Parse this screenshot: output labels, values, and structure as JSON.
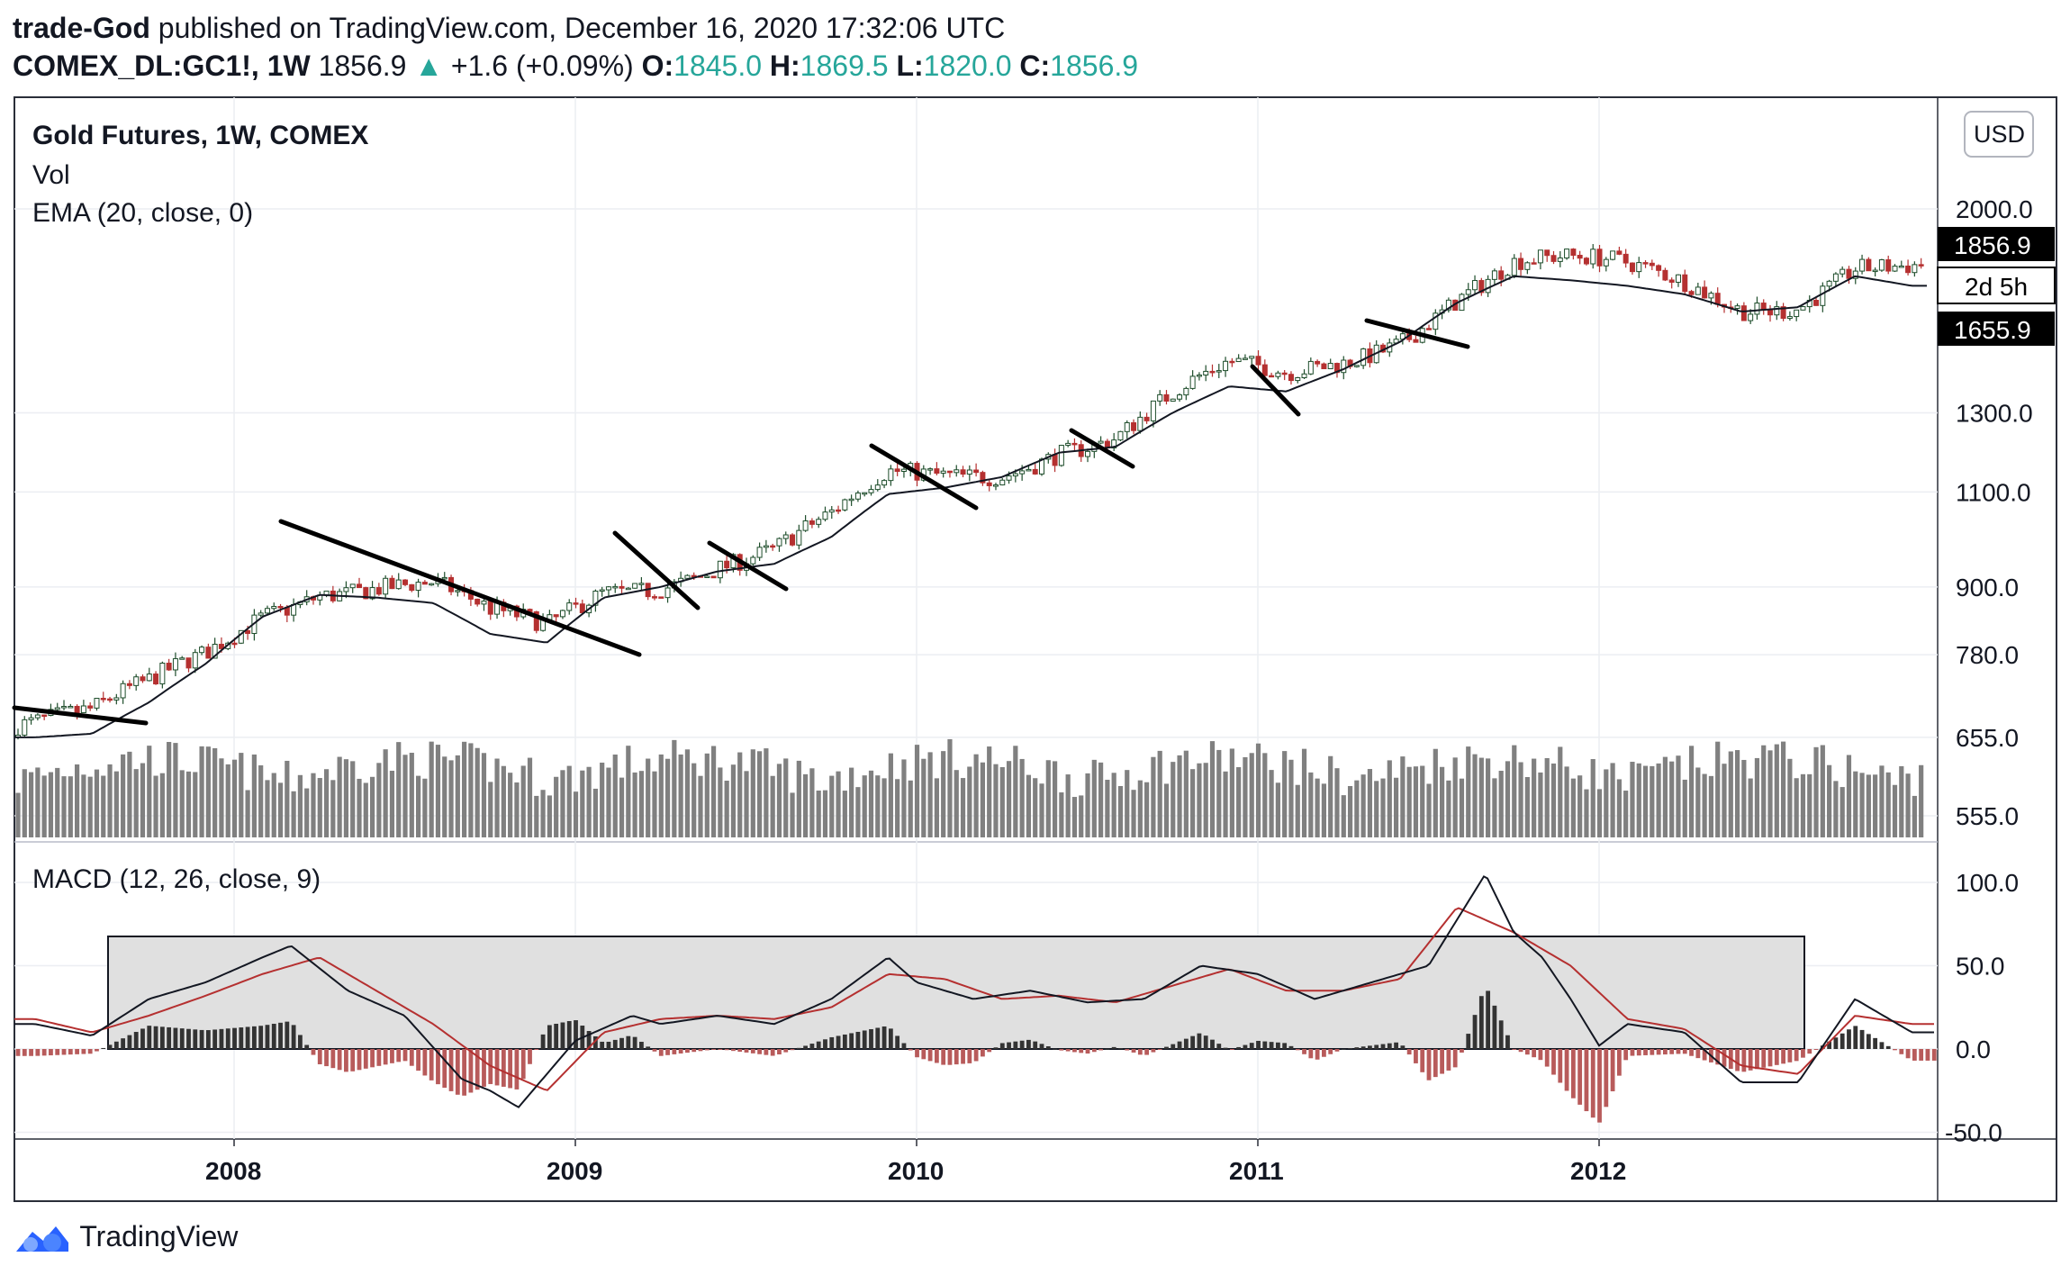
{
  "header": {
    "author": "trade-God",
    "published": "published on TradingView.com, December 16, 2020 17:32:06 UTC",
    "symbol": "COMEX_DL:GC1!, 1W",
    "last": "1856.9",
    "change": "+1.6 (+0.09%)",
    "open_label": "O:",
    "open": "1845.0",
    "high_label": "H:",
    "high": "1869.5",
    "low_label": "L:",
    "low": "1820.0",
    "close_label": "C:",
    "close": "1856.9"
  },
  "legend": {
    "title": "Gold Futures, 1W, COMEX",
    "vol": "Vol",
    "ema": "EMA (20, close, 0)",
    "macd": "MACD (12, 26, close, 9)"
  },
  "currency": "USD",
  "price_tags": {
    "last": "1856.9",
    "countdown": "2d 5h",
    "ema": "1655.9"
  },
  "footer": {
    "brand": "TradingView"
  },
  "colors": {
    "up": "#26a69a",
    "candle_up": "#1e4d2b",
    "candle_down": "#b53030",
    "volume": "#808080",
    "ema": "#131722",
    "signal": "#b53030",
    "hist_up": "#333333",
    "hist_down": "#b85b5b"
  },
  "chart_data": [
    {
      "type": "candlestick",
      "title": "Gold Futures, 1W, COMEX",
      "x_ticks": [
        "2008",
        "2009",
        "2010",
        "2011",
        "2012"
      ],
      "y_ticks": [
        2000.0,
        1300.0,
        1100.0,
        900.0,
        780.0,
        655.0,
        555.0
      ],
      "y_scale": "log",
      "ylim": [
        525,
        2250
      ],
      "series": [
        {
          "name": "EMA (20, close, 0)",
          "points": [
            [
              "2007-06",
              655
            ],
            [
              "2007-08",
              660
            ],
            [
              "2007-10",
              705
            ],
            [
              "2007-12",
              765
            ],
            [
              "2008-02",
              845
            ],
            [
              "2008-04",
              885
            ],
            [
              "2008-06",
              880
            ],
            [
              "2008-08",
              870
            ],
            [
              "2008-10",
              815
            ],
            [
              "2008-12",
              800
            ],
            [
              "2009-02",
              880
            ],
            [
              "2009-04",
              900
            ],
            [
              "2009-06",
              930
            ],
            [
              "2009-08",
              945
            ],
            [
              "2009-10",
              1000
            ],
            [
              "2009-12",
              1095
            ],
            [
              "2010-02",
              1110
            ],
            [
              "2010-04",
              1135
            ],
            [
              "2010-06",
              1195
            ],
            [
              "2010-08",
              1210
            ],
            [
              "2010-10",
              1300
            ],
            [
              "2010-12",
              1375
            ],
            [
              "2011-02",
              1360
            ],
            [
              "2011-04",
              1425
            ],
            [
              "2011-06",
              1510
            ],
            [
              "2011-08",
              1640
            ],
            [
              "2011-10",
              1735
            ],
            [
              "2011-12",
              1720
            ],
            [
              "2012-02",
              1700
            ],
            [
              "2012-04",
              1670
            ],
            [
              "2012-06",
              1610
            ],
            [
              "2012-08",
              1625
            ],
            [
              "2012-10",
              1735
            ],
            [
              "2012-12",
              1700
            ]
          ]
        }
      ],
      "annotations": [
        "Last 1856.9",
        "2d 5h",
        "1655.9"
      ]
    },
    {
      "type": "bar",
      "title": "Vol",
      "note": "weekly volume bars"
    },
    {
      "type": "line",
      "title": "MACD (12, 26, close, 9)",
      "y_ticks": [
        100.0,
        50.0,
        0.0,
        -50.0
      ],
      "ylim": [
        -55,
        110
      ],
      "series": [
        {
          "name": "MACD",
          "points": [
            [
              "2007-06",
              15
            ],
            [
              "2007-08",
              8
            ],
            [
              "2007-10",
              30
            ],
            [
              "2007-12",
              40
            ],
            [
              "2008-02",
              55
            ],
            [
              "2008-03",
              62
            ],
            [
              "2008-05",
              35
            ],
            [
              "2008-07",
              20
            ],
            [
              "2008-09",
              -18
            ],
            [
              "2008-10",
              -25
            ],
            [
              "2008-11",
              -35
            ],
            [
              "2009-01",
              5
            ],
            [
              "2009-03",
              20
            ],
            [
              "2009-04",
              15
            ],
            [
              "2009-06",
              20
            ],
            [
              "2009-08",
              15
            ],
            [
              "2009-10",
              30
            ],
            [
              "2009-12",
              55
            ],
            [
              "2010-01",
              40
            ],
            [
              "2010-03",
              30
            ],
            [
              "2010-05",
              35
            ],
            [
              "2010-07",
              28
            ],
            [
              "2010-09",
              30
            ],
            [
              "2010-11",
              50
            ],
            [
              "2011-01",
              45
            ],
            [
              "2011-03",
              30
            ],
            [
              "2011-05",
              40
            ],
            [
              "2011-07",
              50
            ],
            [
              "2011-09",
              105
            ],
            [
              "2011-10",
              70
            ],
            [
              "2011-11",
              55
            ],
            [
              "2011-12",
              30
            ],
            [
              "2012-01",
              2
            ],
            [
              "2012-02",
              15
            ],
            [
              "2012-04",
              10
            ],
            [
              "2012-06",
              -20
            ],
            [
              "2012-08",
              -20
            ],
            [
              "2012-10",
              30
            ],
            [
              "2012-12",
              10
            ]
          ]
        },
        {
          "name": "Signal",
          "points": [
            [
              "2007-06",
              18
            ],
            [
              "2007-08",
              10
            ],
            [
              "2007-10",
              20
            ],
            [
              "2007-12",
              32
            ],
            [
              "2008-02",
              45
            ],
            [
              "2008-04",
              55
            ],
            [
              "2008-06",
              35
            ],
            [
              "2008-08",
              15
            ],
            [
              "2008-10",
              -10
            ],
            [
              "2008-12",
              -25
            ],
            [
              "2009-02",
              10
            ],
            [
              "2009-04",
              18
            ],
            [
              "2009-06",
              20
            ],
            [
              "2009-08",
              18
            ],
            [
              "2009-10",
              25
            ],
            [
              "2009-12",
              45
            ],
            [
              "2010-02",
              42
            ],
            [
              "2010-04",
              30
            ],
            [
              "2010-06",
              32
            ],
            [
              "2010-08",
              28
            ],
            [
              "2010-10",
              38
            ],
            [
              "2010-12",
              48
            ],
            [
              "2011-02",
              35
            ],
            [
              "2011-04",
              35
            ],
            [
              "2011-06",
              42
            ],
            [
              "2011-08",
              85
            ],
            [
              "2011-10",
              70
            ],
            [
              "2011-12",
              50
            ],
            [
              "2012-02",
              18
            ],
            [
              "2012-04",
              12
            ],
            [
              "2012-06",
              -10
            ],
            [
              "2012-08",
              -15
            ],
            [
              "2012-10",
              20
            ],
            [
              "2012-12",
              15
            ]
          ]
        }
      ]
    }
  ]
}
